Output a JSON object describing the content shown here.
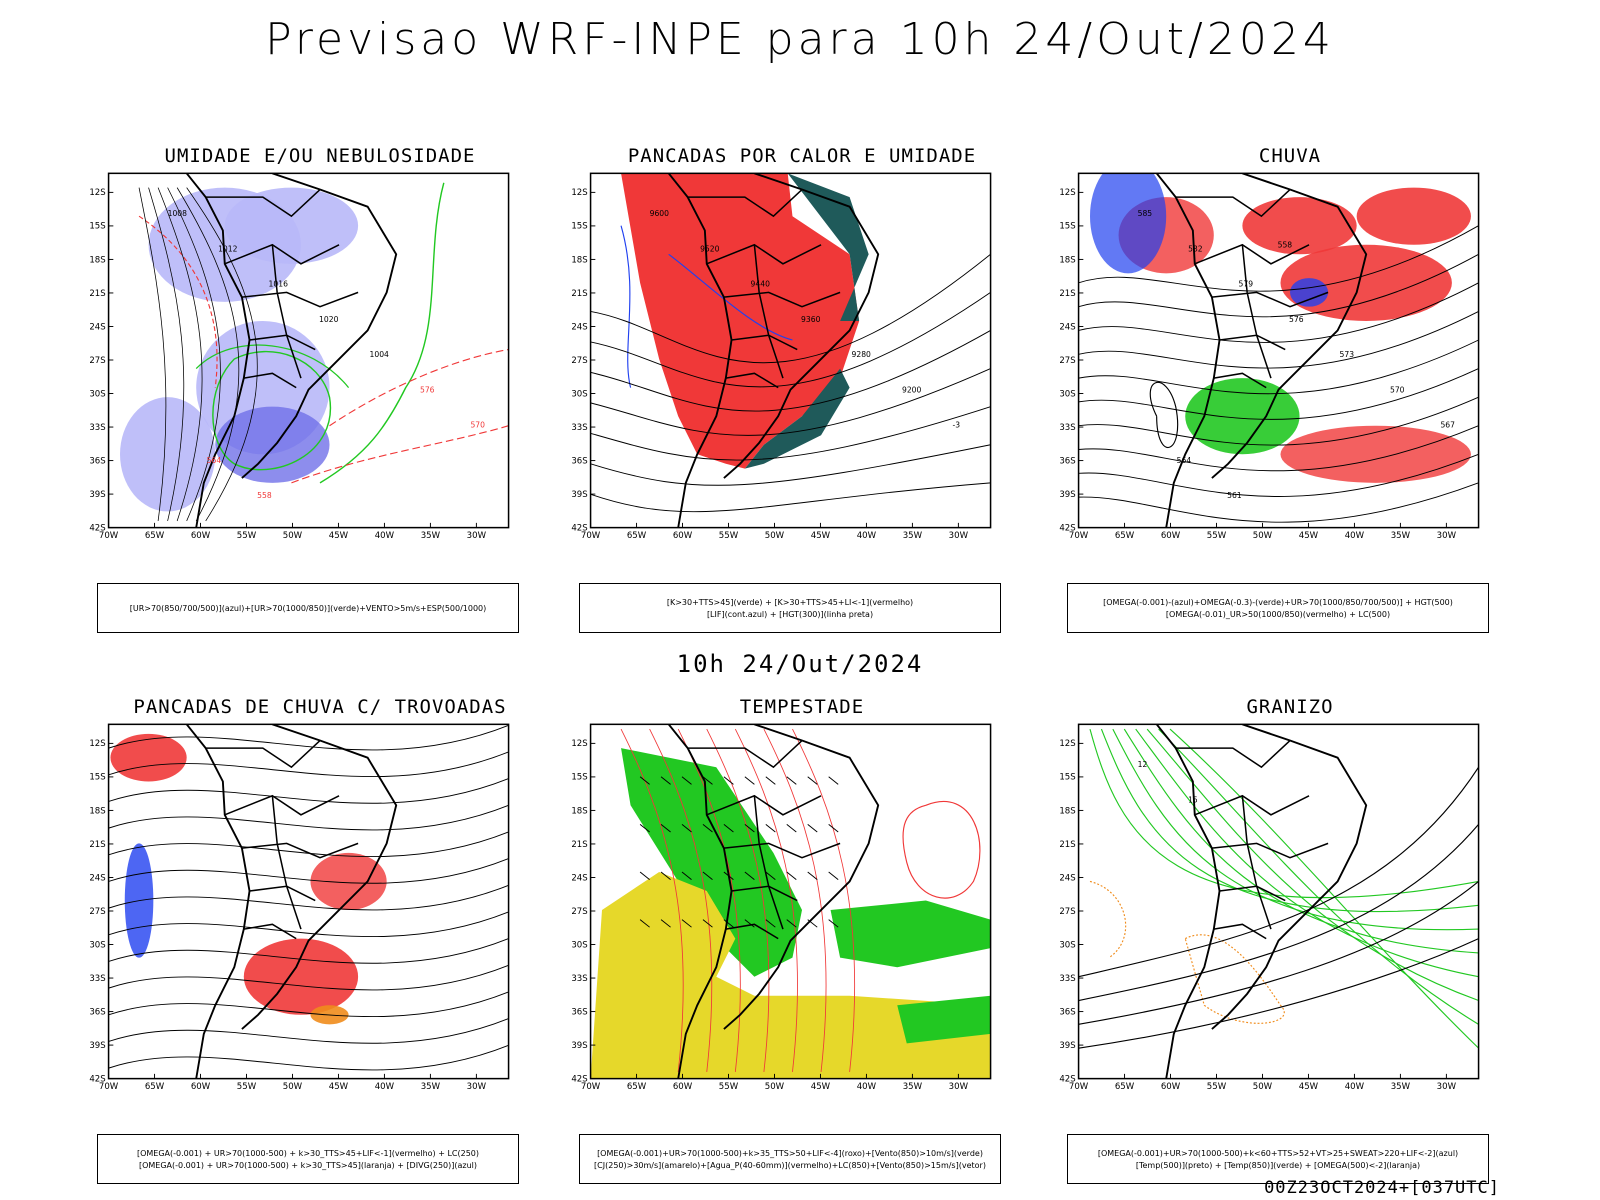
{
  "main_title": "Previsao WRF-INPE  para 10h 24/Out/2024",
  "mid_title": "10h 24/Out/2024",
  "footer_stamp": "00Z23OCT2024+[037UTC]",
  "axes": {
    "lat_labels": [
      "12S",
      "15S",
      "18S",
      "21S",
      "24S",
      "27S",
      "30S",
      "33S",
      "36S",
      "39S",
      "42S"
    ],
    "lon_labels": [
      "70W",
      "65W",
      "60W",
      "55W",
      "50W",
      "45W",
      "40W",
      "35W",
      "30W"
    ]
  },
  "colors": {
    "blue_fill": "#b8b8f8",
    "red": "#f03838",
    "green": "#22c822",
    "dark_teal": "#1f5a5a",
    "blue": "#2040f0",
    "yellow": "#e6d82a",
    "orange": "#f08c1c",
    "black": "#000000"
  },
  "panels": [
    {
      "title": "UMIDADE E/OU NEBULOSIDADE",
      "legend": [
        "[UR>70(850/700/500)](azul)+[UR>70(1000/850)](verde)+VENTO>5m/s+ESP(500/1000)"
      ],
      "contour_labels": [
        "1008",
        "1012",
        "1016",
        "1020",
        "1004",
        "576",
        "570",
        "564",
        "558"
      ]
    },
    {
      "title": "PANCADAS POR CALOR E UMIDADE",
      "legend": [
        "[K>30+TTS>45](verde) + [K>30+TTS>45+LI<-1](vermelho)",
        "[LIF](cont.azul) + [HGT(300)](linha preta)"
      ],
      "contour_labels": [
        "9600",
        "9520",
        "9440",
        "9360",
        "9280",
        "9200",
        "-3"
      ]
    },
    {
      "title": "CHUVA",
      "legend": [
        "[OMEGA(-0.001)-(azul)+OMEGA(-0.3)-(verde)+UR>70(1000/850/700/500)] + HGT(500)",
        "[OMEGA(-0.01)_UR>50(1000/850)(vermelho) + LC(500)"
      ],
      "contour_labels": [
        "585",
        "582",
        "579",
        "576",
        "573",
        "570",
        "567",
        "564",
        "561",
        "558"
      ]
    },
    {
      "title": "PANCADAS DE CHUVA C/ TROVOADAS",
      "legend": [
        "[OMEGA(-0.001) + UR>70(1000-500) + k>30_TTS>45+LIF<-1](vermelho) + LC(250)",
        "[OMEGA(-0.001) + UR>70(1000-500) + k>30_TTS>45](laranja) + [DIVG(250)](azul)"
      ],
      "contour_labels": []
    },
    {
      "title": "TEMPESTADE",
      "legend": [
        "[OMEGA(-0.001)+UR>70(1000-500)+k>35_TTS>50+LIF<-4](roxo)+[Vento(850)>10m/s](verde)",
        "[CJ(250)>30m/s](amarelo)+[Agua_P(40-60mm)](vermelho)+LC(850)+[Vento(850)>15m/s](vetor)"
      ],
      "contour_labels": []
    },
    {
      "title": "GRANIZO",
      "legend": [
        "[OMEGA(-0.001)+UR>70(1000-500)+k<60+TTS>52+VT>25+SWEAT>220+LIF<-2](azul)",
        "[Temp(500)](preto) + [Temp(850)](verde) + [OMEGA(500)<-2](laranja)"
      ],
      "contour_labels": [
        "12",
        "15"
      ]
    }
  ]
}
